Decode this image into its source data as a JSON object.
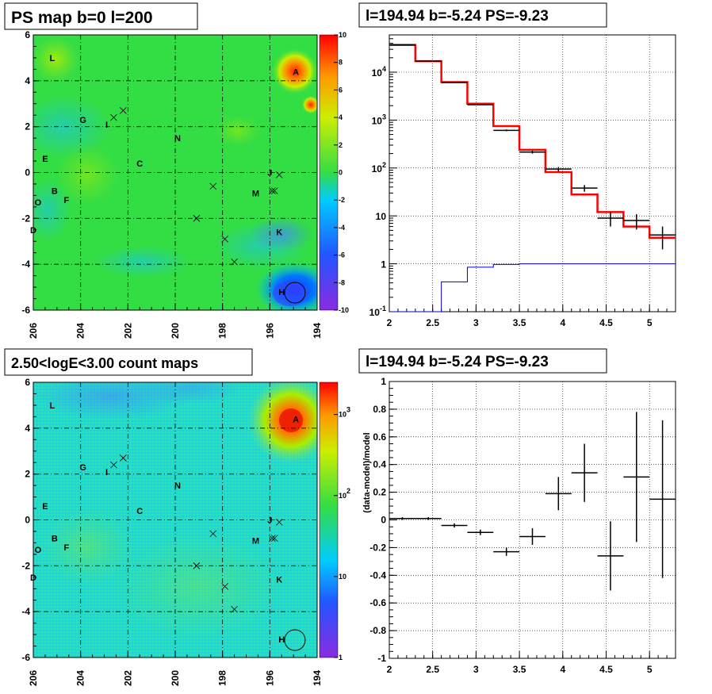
{
  "colors": {
    "map_background": "#33dd44",
    "model_line": "#ff0000",
    "psf_line": "#0000cc",
    "data_marks": "#000000",
    "grid": "#000000"
  },
  "chart_data": [
    {
      "type": "heatmap",
      "title": "PS map b=0 l=200",
      "x_ticks": [
        "206",
        "204",
        "202",
        "200",
        "198",
        "196",
        "194"
      ],
      "y_ticks": [
        "-6",
        "-4",
        "-2",
        "0",
        "2",
        "4",
        "6"
      ],
      "xlim": [
        206,
        194
      ],
      "ylim": [
        -6,
        6
      ],
      "colorbar": {
        "scale": "linear",
        "range": [
          -10,
          10
        ],
        "ticks": [
          "-10",
          "-8",
          "-6",
          "-4",
          "-2",
          "0",
          "2",
          "4",
          "6",
          "8",
          "10"
        ]
      },
      "sources": [
        {
          "label": "L",
          "l": 205.2,
          "b": 5.0
        },
        {
          "label": "A",
          "l": 194.9,
          "b": 4.4
        },
        {
          "label": "G",
          "l": 203.9,
          "b": 2.3
        },
        {
          "label": "I",
          "l": 202.9,
          "b": 2.1
        },
        {
          "label": "N",
          "l": 199.9,
          "b": 1.5
        },
        {
          "label": "E",
          "l": 205.5,
          "b": 0.6
        },
        {
          "label": "C",
          "l": 201.5,
          "b": 0.4
        },
        {
          "label": "J",
          "l": 196.0,
          "b": 0.0
        },
        {
          "label": "B",
          "l": 205.1,
          "b": -0.8
        },
        {
          "label": "O",
          "l": 205.8,
          "b": -1.3
        },
        {
          "label": "F",
          "l": 204.6,
          "b": -1.2
        },
        {
          "label": "M",
          "l": 196.6,
          "b": -0.9
        },
        {
          "label": "D",
          "l": 206.0,
          "b": -2.5
        },
        {
          "label": "K",
          "l": 195.6,
          "b": -2.6
        },
        {
          "label": "H",
          "l": 195.5,
          "b": -5.2
        }
      ],
      "crosses": [
        [
          202.6,
          2.4
        ],
        [
          202.2,
          2.7
        ],
        [
          195.6,
          -0.1
        ],
        [
          198.4,
          -0.6
        ],
        [
          195.8,
          -0.8
        ],
        [
          199.1,
          -2.0
        ],
        [
          197.9,
          -2.9
        ],
        [
          197.5,
          -3.9
        ],
        [
          195.9,
          -0.8
        ]
      ],
      "circle": {
        "l": 194.94,
        "b": -5.24
      }
    },
    {
      "type": "line",
      "title": "l=194.94 b=-5.24 PS=-9.23",
      "xlim": [
        2,
        5.3
      ],
      "ylim": [
        0.1,
        60000
      ],
      "yscale": "log",
      "grid": true,
      "x_ticks": [
        "2",
        "2.5",
        "3",
        "3.5",
        "4",
        "4.5",
        "5"
      ],
      "y_ticks": [
        "10^-1",
        "1",
        "10",
        "10^2",
        "10^3",
        "10^4"
      ],
      "bin_edges": [
        2.0,
        2.3,
        2.6,
        2.9,
        3.2,
        3.5,
        3.8,
        4.1,
        4.4,
        4.7,
        5.0,
        5.3
      ],
      "series": [
        {
          "values": [
            37000,
            17000,
            6200,
            2200,
            750,
            240,
            82,
            28,
            12,
            6,
            3.5
          ]
        },
        {
          "values": [
            0.1,
            0.1,
            0.42,
            0.85,
            0.97,
            1.0,
            1.0,
            1.0,
            1.0,
            1.0,
            1.0
          ]
        },
        {
          "values": [
            37000,
            17000,
            6100,
            2100,
            610,
            215,
            95,
            38,
            9,
            8,
            4
          ],
          "errors": [
            190,
            130,
            80,
            45,
            25,
            15,
            10,
            6,
            3,
            2.8,
            2
          ]
        }
      ]
    },
    {
      "type": "heatmap",
      "title": "2.50<logE<3.00 count maps",
      "x_ticks": [
        "206",
        "204",
        "202",
        "200",
        "198",
        "196",
        "194"
      ],
      "y_ticks": [
        "-6",
        "-4",
        "-2",
        "0",
        "2",
        "4",
        "6"
      ],
      "xlim": [
        206,
        194
      ],
      "ylim": [
        -6,
        6
      ],
      "colorbar": {
        "scale": "log",
        "range": [
          1,
          2500
        ],
        "ticks": [
          "1",
          "10",
          "10^2",
          "10^3"
        ]
      }
    },
    {
      "type": "scatter",
      "title": "l=194.94 b=-5.24 PS=-9.23",
      "ylabel": "(data-model)/model",
      "xlim": [
        2,
        5.3
      ],
      "ylim": [
        -1,
        1
      ],
      "grid": true,
      "x_ticks": [
        "2",
        "2.5",
        "3",
        "3.5",
        "4",
        "4.5",
        "5"
      ],
      "y_ticks": [
        "-1",
        "-0.8",
        "-0.6",
        "-0.4",
        "-0.2",
        "0",
        "0.2",
        "0.4",
        "0.6",
        "0.8",
        "1"
      ],
      "points": [
        {
          "x": 2.15,
          "xerr": 0.15,
          "y": 0.01,
          "yerr": 0.01
        },
        {
          "x": 2.45,
          "xerr": 0.15,
          "y": 0.01,
          "yerr": 0.01
        },
        {
          "x": 2.75,
          "xerr": 0.15,
          "y": -0.04,
          "yerr": 0.015
        },
        {
          "x": 3.05,
          "xerr": 0.15,
          "y": -0.09,
          "yerr": 0.02
        },
        {
          "x": 3.35,
          "xerr": 0.15,
          "y": -0.23,
          "yerr": 0.03
        },
        {
          "x": 3.65,
          "xerr": 0.15,
          "y": -0.12,
          "yerr": 0.06
        },
        {
          "x": 3.95,
          "xerr": 0.15,
          "y": 0.19,
          "yerr": 0.12
        },
        {
          "x": 4.25,
          "xerr": 0.15,
          "y": 0.34,
          "yerr": 0.21
        },
        {
          "x": 4.55,
          "xerr": 0.15,
          "y": -0.26,
          "yerr": 0.25
        },
        {
          "x": 4.85,
          "xerr": 0.15,
          "y": 0.31,
          "yerr": 0.47
        },
        {
          "x": 5.15,
          "xerr": 0.15,
          "y": 0.15,
          "yerr": 0.57
        }
      ]
    }
  ]
}
